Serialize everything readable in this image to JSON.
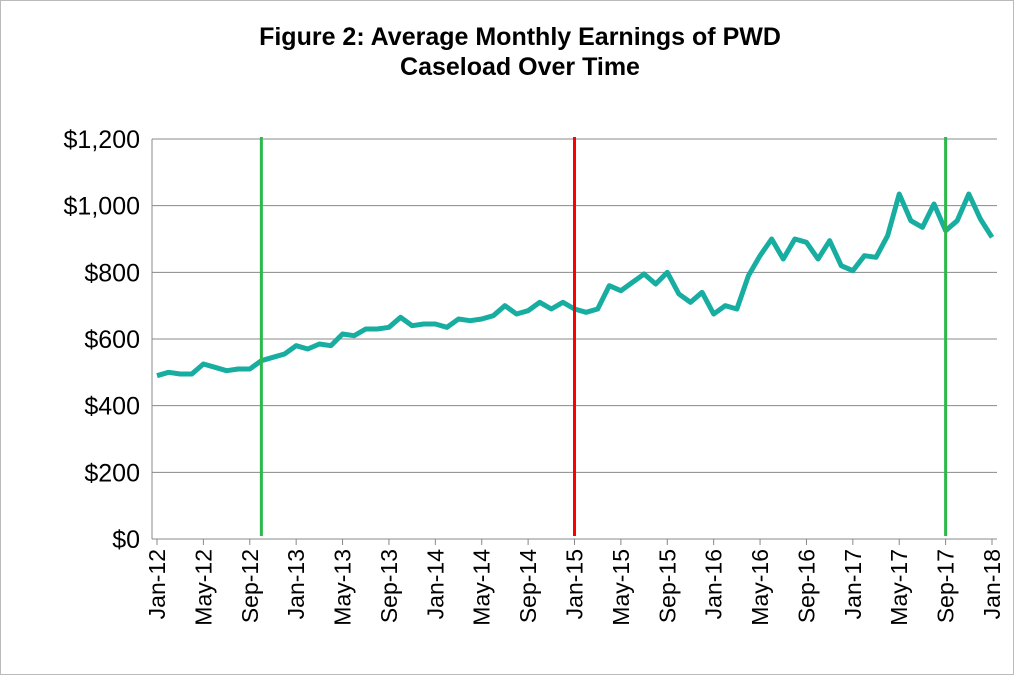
{
  "chart_data": {
    "type": "line",
    "title": "Figure 2: Average Monthly Earnings of PWD Caseload Over Time",
    "categories": [
      "Jan-12",
      null,
      null,
      null,
      "May-12",
      null,
      null,
      null,
      "Sep-12",
      null,
      null,
      null,
      "Jan-13",
      null,
      null,
      null,
      "May-13",
      null,
      null,
      null,
      "Sep-13",
      null,
      null,
      null,
      "Jan-14",
      null,
      null,
      null,
      "May-14",
      null,
      null,
      null,
      "Sep-14",
      null,
      null,
      null,
      "Jan-15",
      null,
      null,
      null,
      "May-15",
      null,
      null,
      null,
      "Sep-15",
      null,
      null,
      null,
      "Jan-16",
      null,
      null,
      null,
      "May-16",
      null,
      null,
      null,
      "Sep-16",
      null,
      null,
      null,
      "Jan-17",
      null,
      null,
      null,
      "May-17",
      null,
      null,
      null,
      "Sep-17",
      null,
      null,
      null,
      "Jan-18"
    ],
    "values": [
      490,
      500,
      495,
      495,
      525,
      515,
      505,
      510,
      510,
      535,
      545,
      555,
      580,
      570,
      585,
      580,
      615,
      610,
      630,
      630,
      635,
      665,
      640,
      645,
      645,
      635,
      660,
      655,
      660,
      670,
      700,
      675,
      685,
      710,
      690,
      710,
      690,
      680,
      690,
      760,
      745,
      770,
      795,
      765,
      800,
      735,
      710,
      740,
      675,
      700,
      690,
      790,
      850,
      900,
      840,
      900,
      890,
      840,
      895,
      820,
      805,
      850,
      845,
      910,
      1035,
      955,
      935,
      1005,
      925,
      955,
      1035,
      960,
      905
    ],
    "color": "#17ada0",
    "ylim": [
      0,
      1200
    ],
    "yticks": [
      {
        "value": 0,
        "label": "$0"
      },
      {
        "value": 200,
        "label": "$200"
      },
      {
        "value": 400,
        "label": "$400"
      },
      {
        "value": 600,
        "label": "$600"
      },
      {
        "value": 800,
        "label": "$800"
      },
      {
        "value": 1000,
        "label": "$1,000"
      },
      {
        "value": 1200,
        "label": "$1,200"
      }
    ],
    "grid": true,
    "vlines": [
      {
        "index": 9,
        "color": "#2eb84b"
      },
      {
        "index": 36,
        "color": "#ff0000"
      },
      {
        "index": 68,
        "color": "#2eb84b"
      }
    ]
  }
}
